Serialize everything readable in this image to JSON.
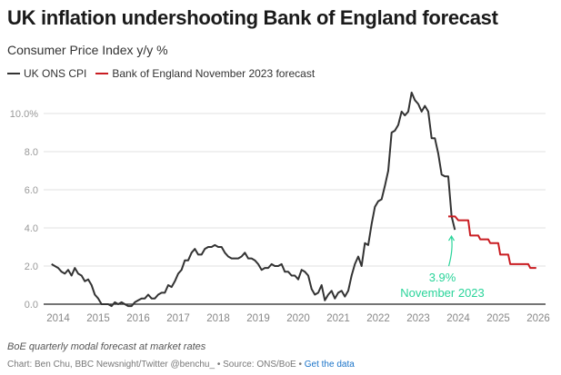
{
  "header": {
    "title": "UK inflation undershooting Bank of England forecast",
    "subtitle": "Consumer Price Index y/y %"
  },
  "legend": [
    {
      "label": "UK ONS CPI",
      "color": "#333333"
    },
    {
      "label": "Bank of England November 2023 forecast",
      "color": "#c91d22"
    }
  ],
  "footer": {
    "note": "BoE quarterly modal forecast at market rates",
    "credit": "Chart: Ben Chu, BBC Newsnight/Twitter @benchu_ • Source: ONS/BoE • ",
    "link_label": "Get the data"
  },
  "chart_data": {
    "type": "line",
    "title": "UK inflation undershooting Bank of England forecast",
    "subtitle": "Consumer Price Index y/y %",
    "xlabel": "",
    "ylabel": "",
    "xlim": [
      2013.75,
      2026.1
    ],
    "ylim": [
      0,
      11.5
    ],
    "grid": true,
    "legend_position": "top-left",
    "y_ticks": [
      {
        "value": 0,
        "label": "0.0"
      },
      {
        "value": 2,
        "label": "2.0"
      },
      {
        "value": 4,
        "label": "4.0"
      },
      {
        "value": 6,
        "label": "6.0"
      },
      {
        "value": 8,
        "label": "8.0"
      },
      {
        "value": 10,
        "label": "10.0%"
      }
    ],
    "x_ticks": [
      {
        "value": 2014,
        "label": "2014"
      },
      {
        "value": 2015,
        "label": "2015"
      },
      {
        "value": 2016,
        "label": "2016"
      },
      {
        "value": 2017,
        "label": "2017"
      },
      {
        "value": 2018,
        "label": "2018"
      },
      {
        "value": 2019,
        "label": "2019"
      },
      {
        "value": 2020,
        "label": "2020"
      },
      {
        "value": 2021,
        "label": "2021"
      },
      {
        "value": 2022,
        "label": "2022"
      },
      {
        "value": 2023,
        "label": "2023"
      },
      {
        "value": 2024,
        "label": "2024"
      },
      {
        "value": 2025,
        "label": "2025"
      },
      {
        "value": 2026,
        "label": "2026"
      }
    ],
    "series": [
      {
        "name": "UK ONS CPI",
        "color": "#333333",
        "start": "2013-11",
        "frequency": "monthly",
        "values": [
          2.1,
          2.0,
          1.9,
          1.7,
          1.6,
          1.8,
          1.5,
          1.9,
          1.6,
          1.5,
          1.2,
          1.3,
          1.0,
          0.5,
          0.3,
          0.0,
          0.0,
          0.0,
          -0.1,
          0.1,
          0.0,
          0.1,
          0.0,
          -0.1,
          -0.1,
          0.1,
          0.2,
          0.3,
          0.3,
          0.5,
          0.3,
          0.3,
          0.5,
          0.6,
          0.6,
          1.0,
          0.9,
          1.2,
          1.6,
          1.8,
          2.3,
          2.3,
          2.7,
          2.9,
          2.6,
          2.6,
          2.9,
          3.0,
          3.0,
          3.1,
          3.0,
          3.0,
          2.7,
          2.5,
          2.4,
          2.4,
          2.4,
          2.5,
          2.7,
          2.4,
          2.4,
          2.3,
          2.1,
          1.8,
          1.9,
          1.9,
          2.1,
          2.0,
          2.0,
          2.1,
          1.7,
          1.7,
          1.5,
          1.5,
          1.3,
          1.8,
          1.7,
          1.5,
          0.8,
          0.5,
          0.6,
          1.0,
          0.2,
          0.5,
          0.7,
          0.3,
          0.6,
          0.7,
          0.4,
          0.7,
          1.5,
          2.1,
          2.5,
          2.0,
          3.2,
          3.1,
          4.2,
          5.1,
          5.4,
          5.5,
          6.2,
          7.0,
          9.0,
          9.1,
          9.4,
          10.1,
          9.9,
          10.1,
          11.1,
          10.7,
          10.5,
          10.1,
          10.4,
          10.1,
          8.7,
          8.7,
          7.9,
          6.8,
          6.7,
          6.7,
          4.6,
          3.9
        ]
      },
      {
        "name": "Bank of England November 2023 forecast",
        "color": "#c91d22",
        "step": true,
        "points": [
          {
            "x": 2023.75,
            "y": 4.6
          },
          {
            "x": 2023.92,
            "y": 4.6
          },
          {
            "x": 2024.0,
            "y": 4.4
          },
          {
            "x": 2024.25,
            "y": 4.4
          },
          {
            "x": 2024.3,
            "y": 3.6
          },
          {
            "x": 2024.5,
            "y": 3.6
          },
          {
            "x": 2024.55,
            "y": 3.4
          },
          {
            "x": 2024.75,
            "y": 3.4
          },
          {
            "x": 2024.8,
            "y": 3.2
          },
          {
            "x": 2025.0,
            "y": 3.2
          },
          {
            "x": 2025.05,
            "y": 2.6
          },
          {
            "x": 2025.25,
            "y": 2.6
          },
          {
            "x": 2025.3,
            "y": 2.1
          },
          {
            "x": 2025.75,
            "y": 2.1
          },
          {
            "x": 2025.8,
            "y": 1.9
          },
          {
            "x": 2025.95,
            "y": 1.9
          }
        ]
      }
    ],
    "annotations": [
      {
        "label": "3.9%",
        "sublabel": "November 2023",
        "x": 2023.83,
        "y": 3.9,
        "color": "#2ad49a"
      }
    ]
  }
}
